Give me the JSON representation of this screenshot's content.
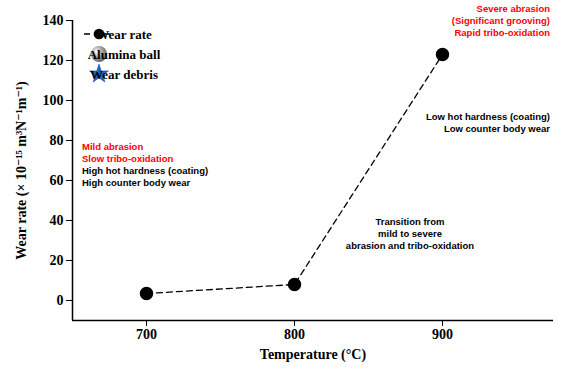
{
  "chart_data": {
    "type": "line",
    "x": [
      700,
      800,
      900
    ],
    "series": [
      {
        "name": "Wear rate",
        "values": [
          3.5,
          8,
          123
        ],
        "color": "#000000",
        "marker": "circle",
        "line_style": "dashed"
      }
    ],
    "xlabel": "Temperature (°C)",
    "ylabel": "Wear rate (× 10⁻¹⁵ m³N⁻¹m⁻¹)",
    "xlim": [
      650,
      975
    ],
    "xticks": [
      700,
      800,
      900
    ],
    "ylim": [
      -10,
      140
    ],
    "yticks": [
      0,
      20,
      40,
      60,
      80,
      100,
      120,
      140
    ],
    "legend": "top-left",
    "legend_symbols": [
      {
        "name": "Alumina ball",
        "color": "#9a9a9a",
        "marker": "circle"
      },
      {
        "name": "Wear debris",
        "color": "#1f63c9",
        "marker": "star"
      }
    ],
    "annotations": [
      {
        "lines": [
          {
            "text": "Mild abrasion",
            "color": "#ff0000"
          },
          {
            "text": "Slow tribo-oxidation",
            "color": "#ff0000"
          },
          {
            "text": "High hot hardness (coating)",
            "color": "#000000"
          },
          {
            "text": "High counter body wear",
            "color": "#000000"
          }
        ]
      },
      {
        "lines": [
          {
            "text": "Transition from",
            "color": "#000000"
          },
          {
            "text": "mild to severe",
            "color": "#000000"
          },
          {
            "text": "abrasion and tribo-oxidation",
            "color": "#000000"
          }
        ]
      },
      {
        "lines": [
          {
            "text": "Severe abrasion",
            "color": "#ff0000"
          },
          {
            "text": "(Significant grooving)",
            "color": "#ff0000"
          },
          {
            "text": "Rapid tribo-oxidation",
            "color": "#ff0000"
          }
        ]
      },
      {
        "lines": [
          {
            "text": "Low hot hardness (coating)",
            "color": "#000000"
          },
          {
            "text": "Low counter body wear",
            "color": "#000000"
          }
        ]
      }
    ]
  }
}
